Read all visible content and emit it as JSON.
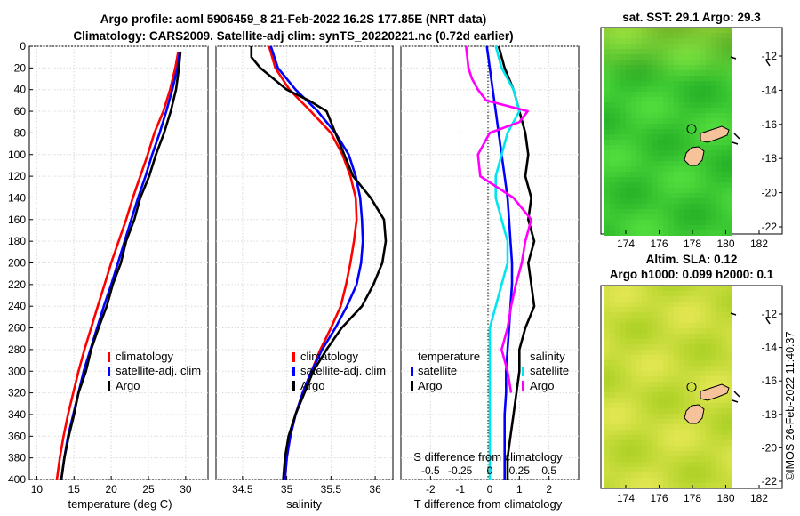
{
  "title_line1": "Argo profile: aoml 5906459_8 21-Feb-2022 16.2S 177.85E (NRT data)",
  "title_line2": "Climatology: CARS2009. Satellite-adj clim: synTS_20220221.nc (0.72d earlier)",
  "map1_title": "sat. SST: 29.1 Argo: 29.3",
  "map2_title1": "Altim. SLA: 0.12",
  "map2_title2": "Argo h1000: 0.099 h2000: 0.1",
  "side_label": "©IMOS 26-Feb-2022 11:40:37",
  "map_lat_ticks": [
    "-12",
    "-14",
    "-16",
    "-18",
    "-20",
    "-22"
  ],
  "map_lon_ticks": [
    "174",
    "176",
    "178",
    "180",
    "182"
  ],
  "colors": {
    "climatology": "#ff0000",
    "satellite": "#0000ff",
    "argo": "#000000",
    "temp_diff": "#000000",
    "sal_diff_sat": "#00e5ee",
    "sal_diff_argo": "#ff00ff",
    "land": "#f5c29a",
    "sst_field": "#3fcf3a",
    "sla_field": "#c8e040"
  },
  "chart_data": [
    {
      "type": "line",
      "name": "temperature-profile",
      "xlabel": "temperature (deg C)",
      "ylabel": "",
      "xlim": [
        9,
        33
      ],
      "ylim": [
        400,
        0
      ],
      "xticks": [
        10,
        15,
        20,
        25,
        30
      ],
      "yticks": [
        0,
        20,
        40,
        60,
        80,
        100,
        120,
        140,
        160,
        180,
        200,
        220,
        240,
        260,
        280,
        300,
        320,
        340,
        360,
        380,
        400
      ],
      "legend": {
        "position": "right",
        "labels": [
          "climatology",
          "satellite-adj. clim",
          "Argo"
        ]
      },
      "series": [
        {
          "name": "climatology",
          "color": "#ff0000",
          "depth": [
            5,
            20,
            40,
            60,
            80,
            100,
            120,
            140,
            160,
            180,
            200,
            220,
            240,
            260,
            280,
            300,
            320,
            340,
            360,
            380,
            400
          ],
          "values": [
            29.0,
            28.6,
            27.9,
            27.0,
            25.8,
            24.9,
            23.9,
            22.9,
            22.0,
            21.0,
            20.0,
            19.1,
            18.2,
            17.3,
            16.4,
            15.6,
            14.9,
            14.2,
            13.6,
            13.1,
            12.7
          ]
        },
        {
          "name": "satellite-adj. clim",
          "color": "#0000ff",
          "depth": [
            5,
            20,
            40,
            60,
            80,
            100,
            120,
            140,
            160,
            180,
            200,
            220,
            240,
            260,
            280,
            300,
            320,
            340,
            360,
            380,
            400
          ],
          "values": [
            29.2,
            28.9,
            28.2,
            27.4,
            26.5,
            25.5,
            24.6,
            23.6,
            22.7,
            21.8,
            20.9,
            20.0,
            19.0,
            18.1,
            17.2,
            16.3,
            15.6,
            14.9,
            14.2,
            13.7,
            13.3
          ]
        },
        {
          "name": "Argo",
          "color": "#000000",
          "depth": [
            5,
            20,
            40,
            60,
            80,
            100,
            120,
            140,
            160,
            180,
            200,
            220,
            240,
            260,
            280,
            300,
            320,
            340,
            360,
            380,
            400
          ],
          "values": [
            29.3,
            29.1,
            28.7,
            28.0,
            27.1,
            26.0,
            25.1,
            23.9,
            23.1,
            22.0,
            21.3,
            20.2,
            19.4,
            18.3,
            17.3,
            16.6,
            15.6,
            15.0,
            14.3,
            13.7,
            13.3
          ]
        }
      ]
    },
    {
      "type": "line",
      "name": "salinity-profile",
      "xlabel": "salinity",
      "ylabel": "",
      "xlim": [
        34.2,
        36.2
      ],
      "ylim": [
        400,
        0
      ],
      "xticks": [
        34.5,
        35,
        35.5,
        36
      ],
      "xticklabels": [
        "34.5",
        "35",
        "35.5",
        "36"
      ],
      "legend": {
        "position": "right",
        "labels": [
          "climatology",
          "satellite-adj. clim",
          "Argo"
        ]
      },
      "series": [
        {
          "name": "climatology",
          "color": "#ff0000",
          "depth": [
            0,
            20,
            40,
            60,
            80,
            100,
            120,
            140,
            160,
            180,
            200,
            220,
            240,
            260,
            280,
            300,
            320,
            340,
            360,
            380,
            400
          ],
          "values": [
            34.8,
            34.87,
            35.03,
            35.27,
            35.5,
            35.63,
            35.72,
            35.78,
            35.79,
            35.76,
            35.72,
            35.67,
            35.61,
            35.5,
            35.38,
            35.28,
            35.18,
            35.1,
            35.04,
            35.0,
            34.98
          ]
        },
        {
          "name": "satellite-adj. clim",
          "color": "#0000ff",
          "depth": [
            0,
            20,
            40,
            60,
            80,
            100,
            120,
            140,
            160,
            180,
            200,
            220,
            240,
            260,
            280,
            300,
            320,
            340,
            360,
            380,
            400
          ],
          "values": [
            34.82,
            34.9,
            35.1,
            35.35,
            35.55,
            35.7,
            35.78,
            35.83,
            35.85,
            35.86,
            35.84,
            35.79,
            35.68,
            35.55,
            35.4,
            35.28,
            35.18,
            35.1,
            35.04,
            35.0,
            34.98
          ]
        },
        {
          "name": "Argo",
          "color": "#000000",
          "depth": [
            0,
            10,
            20,
            30,
            40,
            50,
            60,
            80,
            100,
            120,
            140,
            160,
            180,
            200,
            220,
            240,
            260,
            280,
            300,
            320,
            340,
            360,
            380,
            400
          ],
          "values": [
            34.6,
            34.6,
            34.7,
            34.85,
            35.0,
            35.25,
            35.45,
            35.55,
            35.65,
            35.75,
            35.95,
            36.1,
            36.12,
            36.08,
            35.98,
            35.85,
            35.62,
            35.45,
            35.3,
            35.2,
            35.1,
            35.02,
            34.98,
            34.96
          ]
        }
      ]
    },
    {
      "type": "line",
      "name": "difference-profile",
      "xlabel": "T difference from climatology",
      "xlabel_top": "S difference from climatology",
      "xlim": [
        -3,
        3
      ],
      "ylim": [
        400,
        0
      ],
      "xticks": [
        -2,
        -1,
        0,
        1,
        2
      ],
      "s_xticks": [
        -0.5,
        -0.25,
        0,
        0.25,
        0.5
      ],
      "s_xticklabels": [
        "-0.5",
        "-0.25",
        "0",
        "0.25",
        "0.5"
      ],
      "legend": {
        "position": "right",
        "temperature_header": "temperature",
        "salinity_header": "salinity",
        "temperature_labels": [
          "satellite",
          "Argo"
        ],
        "salinity_labels": [
          "satellite",
          "Argo"
        ]
      },
      "series": [
        {
          "name": "temperature satellite",
          "color": "#0000ff",
          "depth": [
            0,
            20,
            40,
            60,
            80,
            100,
            120,
            140,
            160,
            180,
            200,
            220,
            240,
            260,
            280,
            300,
            320,
            340,
            360,
            380,
            400
          ],
          "values": [
            -0.1,
            0.0,
            0.1,
            0.2,
            0.3,
            0.4,
            0.5,
            0.6,
            0.65,
            0.7,
            0.75,
            0.75,
            0.7,
            0.65,
            0.6,
            0.55,
            0.55,
            0.5,
            0.5,
            0.5,
            0.5
          ]
        },
        {
          "name": "temperature Argo",
          "color": "#000000",
          "depth": [
            0,
            20,
            40,
            60,
            80,
            100,
            120,
            140,
            160,
            180,
            200,
            220,
            240,
            260,
            280,
            300,
            320,
            340,
            360,
            380,
            400
          ],
          "values": [
            0.3,
            0.5,
            0.8,
            1.0,
            1.2,
            1.3,
            1.2,
            1.4,
            1.3,
            1.5,
            1.3,
            1.4,
            1.5,
            1.2,
            1.0,
            1.0,
            0.9,
            0.8,
            0.7,
            0.6,
            0.6
          ]
        },
        {
          "name": "salinity satellite",
          "color": "#00e5ee",
          "depth": [
            0,
            20,
            40,
            60,
            80,
            100,
            120,
            140,
            160,
            180,
            200,
            220,
            240,
            260,
            280,
            300,
            320,
            340,
            360,
            380,
            400
          ],
          "values": [
            0.05,
            0.1,
            0.2,
            0.25,
            0.15,
            0.1,
            0.05,
            0.05,
            0.1,
            0.15,
            0.15,
            0.1,
            0.05,
            0.0,
            0.0,
            0.0,
            0.0,
            0.0,
            0.0,
            0.0,
            0.0
          ]
        },
        {
          "name": "salinity Argo",
          "color": "#ff00ff",
          "depth": [
            0,
            20,
            30,
            40,
            50,
            60,
            70,
            80,
            100,
            120,
            140,
            160,
            180,
            200,
            220,
            240,
            260,
            280,
            300,
            320
          ],
          "values": [
            -0.2,
            -0.18,
            -0.15,
            -0.1,
            -0.03,
            0.32,
            0.25,
            0.0,
            -0.1,
            -0.08,
            0.2,
            0.35,
            0.3,
            0.27,
            0.22,
            0.18,
            0.15,
            0.1,
            0.15,
            0.18
          ]
        }
      ]
    }
  ]
}
